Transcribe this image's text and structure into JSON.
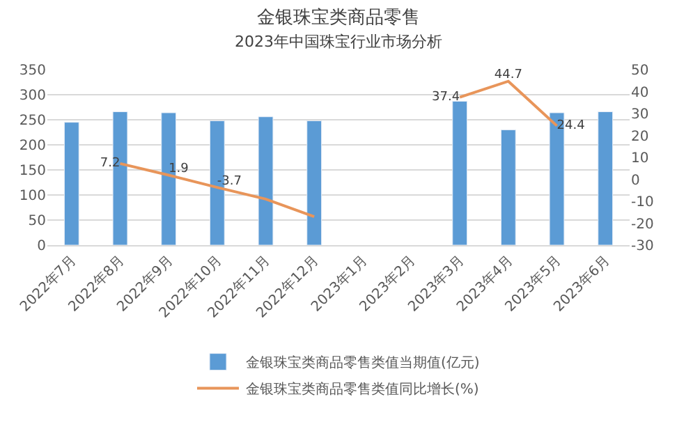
{
  "chart_data": {
    "type": "bar",
    "title": "金银珠宝类商品零售",
    "subtitle": "2023年中国珠宝行业市场分析",
    "categories": [
      "2022年7月",
      "2022年8月",
      "2022年9月",
      "2022年10月",
      "2022年11月",
      "2022年12月",
      "2023年1月",
      "2023年2月",
      "2023年3月",
      "2023年4月",
      "2023年5月",
      "2023年6月"
    ],
    "series": [
      {
        "name": "金银珠宝类商品零售类值当期值(亿元)",
        "color": "#5b9bd5",
        "values": [
          245,
          266,
          264,
          248,
          256,
          248,
          null,
          null,
          287,
          230,
          264,
          266
        ]
      },
      {
        "name": "金银珠宝类商品零售类值同比增长(%)",
        "type": "line",
        "axis": "y2",
        "color": "#e8955a",
        "values": [
          null,
          7.2,
          1.9,
          -3.7,
          -9,
          -17,
          null,
          null,
          37.4,
          44.7,
          24.4,
          null
        ],
        "value_labels": [
          null,
          "7.2",
          "1.9",
          "-3.7",
          null,
          null,
          null,
          null,
          "37.4",
          "44.7",
          "24.4",
          null
        ]
      }
    ],
    "ylim": [
      0,
      350
    ],
    "yticks": [
      0,
      50,
      100,
      150,
      200,
      250,
      300,
      350
    ],
    "y2lim": [
      -30,
      50
    ],
    "y2ticks": [
      -30,
      -20,
      -10,
      0,
      10,
      20,
      30,
      40,
      50
    ],
    "grid": "y",
    "legend": "bottom",
    "marker": "none"
  }
}
